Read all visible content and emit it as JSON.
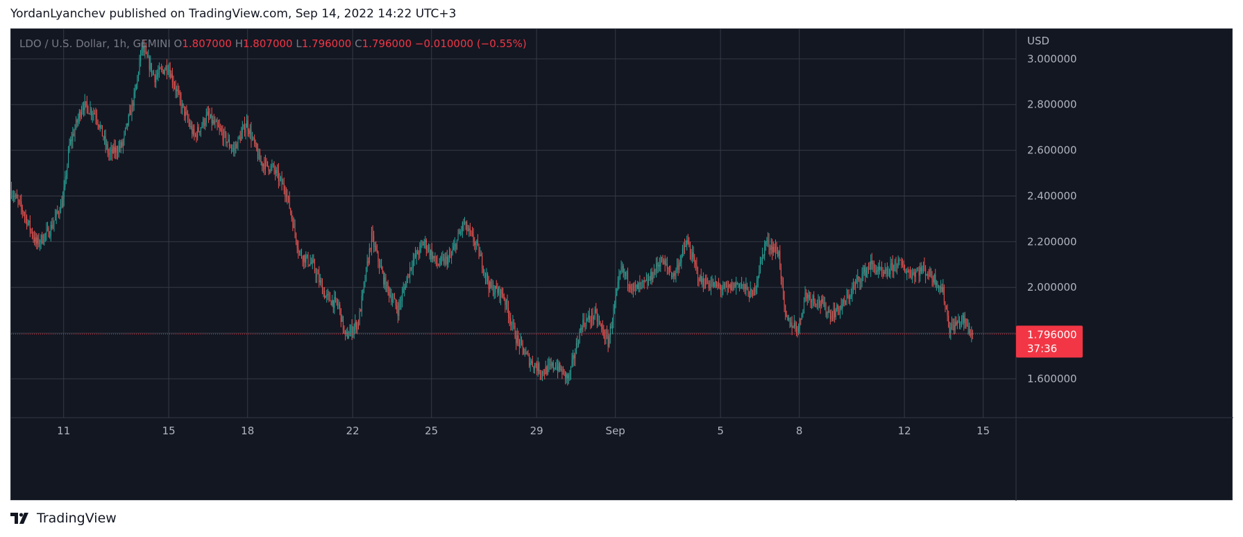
{
  "header": {
    "text": "YordanLyanchev published on TradingView.com, Sep 14, 2022 14:22 UTC+3"
  },
  "legend": {
    "symbol": "LDO / U.S. Dollar, 1h, GEMINI",
    "o_label": "O",
    "o_value": "1.807000",
    "h_label": "H",
    "h_value": "1.807000",
    "l_label": "L",
    "l_value": "1.796000",
    "c_label": "C",
    "c_value": "1.796000",
    "change": "−0.010000 (−0.55%)"
  },
  "footer": {
    "brand": "TradingView"
  },
  "colors": {
    "background": "#131722",
    "grid": "#363a45",
    "text": "#b2b5be",
    "up": "#26a69a",
    "down": "#ef5350",
    "price_tag": "#f23645"
  },
  "chart_data": {
    "type": "candlestick",
    "title": "LDO / U.S. Dollar, 1h, GEMINI",
    "y_axis_label": "USD",
    "ylim": [
      1.43,
      3.13
    ],
    "y_ticks": [
      1.6,
      1.8,
      2.0,
      2.2,
      2.4,
      2.6,
      2.8,
      3.0
    ],
    "y_tick_labels": [
      "1.600000",
      "2.000000",
      "2.200000",
      "2.400000",
      "2.600000",
      "2.800000",
      "3.000000"
    ],
    "y_tick_values": [
      1.6,
      2.0,
      2.2,
      2.4,
      2.6,
      2.8,
      3.0
    ],
    "x_ticks": [
      {
        "label": "11",
        "date": "2022-08-11"
      },
      {
        "label": "15",
        "date": "2022-08-15"
      },
      {
        "label": "18",
        "date": "2022-08-18"
      },
      {
        "label": "22",
        "date": "2022-08-22"
      },
      {
        "label": "25",
        "date": "2022-08-25"
      },
      {
        "label": "29",
        "date": "2022-08-29"
      },
      {
        "label": "Sep",
        "date": "2022-09-01"
      },
      {
        "label": "5",
        "date": "2022-09-05"
      },
      {
        "label": "8",
        "date": "2022-09-08"
      },
      {
        "label": "12",
        "date": "2022-09-12"
      },
      {
        "label": "15",
        "date": "2022-09-15"
      }
    ],
    "x_start": "2022-08-09T00:00",
    "x_end": "2022-09-16T06:00",
    "price_path": [
      [
        "2022-08-09T00:00",
        2.43
      ],
      [
        "2022-08-09T12:00",
        2.33
      ],
      [
        "2022-08-10T00:00",
        2.19
      ],
      [
        "2022-08-10T12:00",
        2.25
      ],
      [
        "2022-08-11T00:00",
        2.38
      ],
      [
        "2022-08-11T06:00",
        2.62
      ],
      [
        "2022-08-11T18:00",
        2.8
      ],
      [
        "2022-08-12T06:00",
        2.76
      ],
      [
        "2022-08-12T18:00",
        2.58
      ],
      [
        "2022-08-13T06:00",
        2.62
      ],
      [
        "2022-08-13T18:00",
        2.85
      ],
      [
        "2022-08-14T00:00",
        3.05
      ],
      [
        "2022-08-14T12:00",
        2.92
      ],
      [
        "2022-08-15T00:00",
        2.97
      ],
      [
        "2022-08-15T12:00",
        2.8
      ],
      [
        "2022-08-16T00:00",
        2.66
      ],
      [
        "2022-08-16T12:00",
        2.75
      ],
      [
        "2022-08-17T00:00",
        2.68
      ],
      [
        "2022-08-17T12:00",
        2.6
      ],
      [
        "2022-08-18T00:00",
        2.72
      ],
      [
        "2022-08-18T12:00",
        2.55
      ],
      [
        "2022-08-19T00:00",
        2.52
      ],
      [
        "2022-08-19T12:00",
        2.42
      ],
      [
        "2022-08-20T00:00",
        2.15
      ],
      [
        "2022-08-20T12:00",
        2.1
      ],
      [
        "2022-08-21T00:00",
        1.96
      ],
      [
        "2022-08-21T12:00",
        1.92
      ],
      [
        "2022-08-21T18:00",
        1.78
      ],
      [
        "2022-08-22T06:00",
        1.85
      ],
      [
        "2022-08-22T18:00",
        2.22
      ],
      [
        "2022-08-23T06:00",
        2.02
      ],
      [
        "2022-08-23T18:00",
        1.9
      ],
      [
        "2022-08-24T06:00",
        2.1
      ],
      [
        "2022-08-24T18:00",
        2.2
      ],
      [
        "2022-08-25T06:00",
        2.1
      ],
      [
        "2022-08-25T18:00",
        2.13
      ],
      [
        "2022-08-26T06:00",
        2.28
      ],
      [
        "2022-08-26T18:00",
        2.18
      ],
      [
        "2022-08-27T06:00",
        2.0
      ],
      [
        "2022-08-27T18:00",
        1.97
      ],
      [
        "2022-08-28T06:00",
        1.78
      ],
      [
        "2022-08-28T18:00",
        1.68
      ],
      [
        "2022-08-29T06:00",
        1.63
      ],
      [
        "2022-08-29T18:00",
        1.66
      ],
      [
        "2022-08-30T06:00",
        1.6
      ],
      [
        "2022-08-30T18:00",
        1.84
      ],
      [
        "2022-08-31T06:00",
        1.88
      ],
      [
        "2022-08-31T18:00",
        1.76
      ],
      [
        "2022-09-01T06:00",
        2.08
      ],
      [
        "2022-09-01T18:00",
        1.99
      ],
      [
        "2022-09-02T06:00",
        2.02
      ],
      [
        "2022-09-02T18:00",
        2.12
      ],
      [
        "2022-09-03T06:00",
        2.05
      ],
      [
        "2022-09-03T18:00",
        2.2
      ],
      [
        "2022-09-04T06:00",
        2.03
      ],
      [
        "2022-09-04T18:00",
        2.01
      ],
      [
        "2022-09-05T06:00",
        1.99
      ],
      [
        "2022-09-05T18:00",
        2.02
      ],
      [
        "2022-09-06T06:00",
        1.96
      ],
      [
        "2022-09-06T18:00",
        2.2
      ],
      [
        "2022-09-07T06:00",
        2.15
      ],
      [
        "2022-09-07T12:00",
        1.86
      ],
      [
        "2022-09-08T00:00",
        1.82
      ],
      [
        "2022-09-08T06:00",
        1.97
      ],
      [
        "2022-09-08T18:00",
        1.94
      ],
      [
        "2022-09-09T06:00",
        1.88
      ],
      [
        "2022-09-09T18:00",
        1.93
      ],
      [
        "2022-09-10T06:00",
        2.03
      ],
      [
        "2022-09-10T18:00",
        2.1
      ],
      [
        "2022-09-11T06:00",
        2.05
      ],
      [
        "2022-09-11T18:00",
        2.11
      ],
      [
        "2022-09-12T06:00",
        2.06
      ],
      [
        "2022-09-12T18:00",
        2.08
      ],
      [
        "2022-09-13T06:00",
        2.03
      ],
      [
        "2022-09-13T12:00",
        1.98
      ],
      [
        "2022-09-13T18:00",
        1.82
      ],
      [
        "2022-09-14T06:00",
        1.86
      ],
      [
        "2022-09-14T14:00",
        1.796
      ]
    ],
    "last_price": 1.796,
    "last_price_label": "1.796000",
    "countdown": "37:36"
  }
}
